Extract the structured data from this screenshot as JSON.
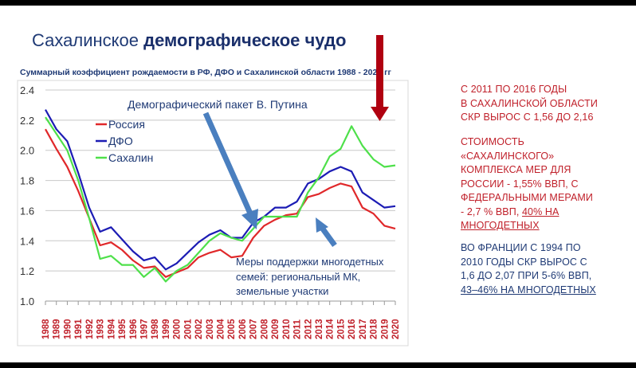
{
  "header": {
    "title_regular": "Сахалинское",
    "title_bold": "демографическое чудо",
    "subtitle": "Суммарный коэффициент рождаемости в РФ, ДФО и Сахалинской области 1988 - 2020 гг"
  },
  "colors": {
    "russia": "#e0282a",
    "dfo": "#1c1cb4",
    "sakhalin": "#4ee04a",
    "arrow_blue": "#4a7fbf",
    "arrow_red": "#b00010"
  },
  "chart_data": {
    "type": "line",
    "title": "Суммарный коэффициент рождаемости в РФ, ДФО и Сахалинской области 1988 - 2020 гг",
    "xlabel": "",
    "ylabel": "",
    "ylim": [
      1.0,
      2.4
    ],
    "yticks": [
      "1.0",
      "1.2",
      "1.4",
      "1.6",
      "1.8",
      "2.0",
      "2.2",
      "2.4"
    ],
    "grid": true,
    "legend_position": "top-left",
    "x": [
      "1988",
      "1989",
      "1990",
      "1991",
      "1992",
      "1993",
      "1994",
      "1995",
      "1996",
      "1997",
      "1998",
      "1999",
      "2000",
      "2001",
      "2002",
      "2003",
      "2004",
      "2005",
      "2006",
      "2007",
      "2008",
      "2009",
      "2010",
      "2011",
      "2012",
      "2013",
      "2014",
      "2015",
      "2016",
      "2017",
      "2018",
      "2019",
      "2020"
    ],
    "series": [
      {
        "name": "Россия",
        "color": "#e0282a",
        "values": [
          2.14,
          2.01,
          1.89,
          1.73,
          1.55,
          1.37,
          1.39,
          1.34,
          1.27,
          1.22,
          1.23,
          1.16,
          1.19,
          1.22,
          1.29,
          1.32,
          1.34,
          1.29,
          1.3,
          1.42,
          1.5,
          1.54,
          1.57,
          1.58,
          1.69,
          1.71,
          1.75,
          1.78,
          1.76,
          1.62,
          1.58,
          1.5,
          1.48
        ]
      },
      {
        "name": "ДФО",
        "color": "#1c1cb4",
        "values": [
          2.27,
          2.14,
          2.06,
          1.85,
          1.62,
          1.46,
          1.49,
          1.41,
          1.33,
          1.27,
          1.29,
          1.21,
          1.25,
          1.32,
          1.39,
          1.44,
          1.47,
          1.42,
          1.42,
          1.52,
          1.56,
          1.62,
          1.62,
          1.66,
          1.78,
          1.81,
          1.86,
          1.89,
          1.86,
          1.72,
          1.67,
          1.62,
          1.63
        ]
      },
      {
        "name": "Сахалин",
        "color": "#4ee04a",
        "values": [
          2.22,
          2.11,
          2.0,
          1.8,
          1.55,
          1.28,
          1.3,
          1.24,
          1.24,
          1.16,
          1.22,
          1.13,
          1.2,
          1.24,
          1.32,
          1.4,
          1.45,
          1.42,
          1.4,
          1.48,
          1.56,
          1.56,
          1.56,
          1.56,
          1.72,
          1.82,
          1.96,
          2.01,
          2.16,
          2.03,
          1.94,
          1.89,
          1.9
        ]
      }
    ],
    "annotations": {
      "putin": "Демографический пакет В. Путина",
      "measures": [
        "Меры поддержки многодетных",
        "семей: региональный МК,",
        "земельные участки"
      ]
    }
  },
  "side": {
    "block1": [
      "С 2011 ПО 2016 ГОДЫ",
      "В САХАЛИНСКОЙ ОБЛАСТИ",
      "СКР ВЫРОС С 1,56  ДО 2,16"
    ],
    "block2": [
      "СТОИМОСТЬ",
      "«САХАЛИНСКОГО»",
      "КОМПЛЕКСА МЕР ДЛЯ",
      "РОССИИ - 1,55% ВВП, С",
      "ФЕДЕРАЛЬНЫМИ МЕРАМИ",
      "- 2,7 % ВВП, "
    ],
    "block2_underlined": [
      "40% НА",
      "МНОГОДЕТНЫХ"
    ],
    "block3": [
      "ВО ФРАНЦИИ С 1994 ПО",
      "2010 ГОДЫ СКР  ВЫРОС   С",
      "1,6 ДО 2,07 ПРИ 5-6% ВВП,"
    ],
    "block3_underlined": "43–46% НА МНОГОДЕТНЫХ"
  }
}
